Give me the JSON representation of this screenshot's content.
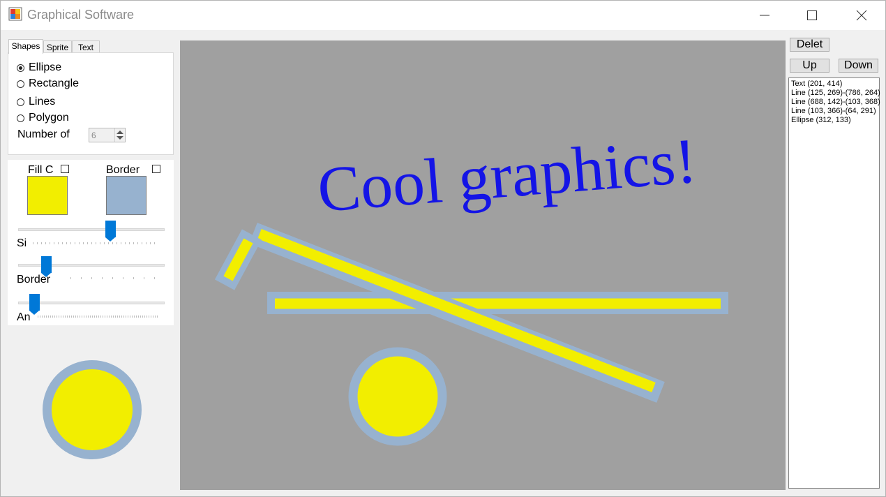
{
  "window": {
    "title": "Graphical Software"
  },
  "tabs": [
    {
      "label": "Shapes",
      "active": true
    },
    {
      "label": "Sprite",
      "active": false
    },
    {
      "label": "Text",
      "active": false
    }
  ],
  "shapes_panel": {
    "options": [
      {
        "label": "Ellipse",
        "selected": true
      },
      {
        "label": "Rectangle",
        "selected": false
      },
      {
        "label": "Lines",
        "selected": false
      },
      {
        "label": "Polygon",
        "selected": false
      }
    ],
    "number_label": "Number of",
    "number_value": "6"
  },
  "properties": {
    "fill_label": "Fill C",
    "border_label": "Border",
    "fill_color": "#f2ee00",
    "border_color": "#97b2cf",
    "size_label": "Si",
    "border_width_label": "Border",
    "angle_label": "An",
    "size_slider_level": 0.64,
    "border_slider_level": 0.17,
    "angle_slider_level": 0.08
  },
  "toolbar": {
    "delete_label": "Delet",
    "up_label": "Up",
    "down_label": "Down"
  },
  "canvas": {
    "background": "#a0a0a0",
    "text_object": "Cool graphics!",
    "text_color": "#1414e6"
  },
  "objects_list": [
    "Text (201, 414)",
    "Line (125, 269)-(786, 264)",
    "Line (688, 142)-(103, 368)",
    "Line (103, 366)-(64, 291)",
    "Ellipse (312, 133)"
  ]
}
